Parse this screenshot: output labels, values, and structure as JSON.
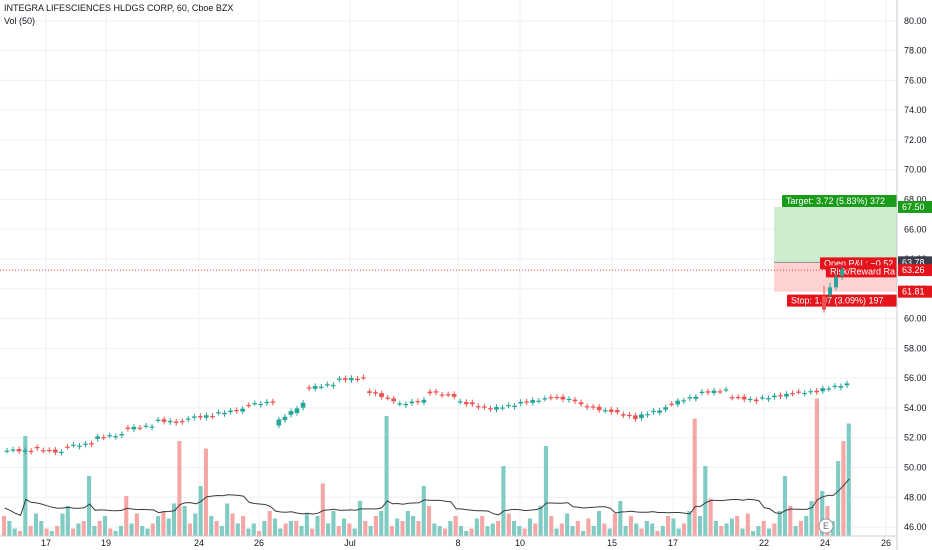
{
  "header": {
    "symbol_line": "INTEGRA LIFESCIENCES HLDGS CORP, 60, Cboe BZX",
    "volume_line": "Vol (50)"
  },
  "colors": {
    "up": "#26a69a",
    "down": "#ef5350",
    "vol_up": "#80cbc4",
    "vol_down": "#f4a7a5",
    "target_zone": "#cdeccd",
    "stop_zone": "#fdd2d1",
    "target_tag": "#1a9c1a",
    "stop_tag": "#e5141c",
    "price_line": "#e8413b",
    "ma_line": "#3c3c3c",
    "grid": "#eef0f3",
    "axis_tag_dark": "#3a3f4b"
  },
  "chart_data": {
    "type": "candlestick",
    "title": "INTEGRA LIFESCIENCES HLDGS CORP, 60, Cboe BZX",
    "ylim": [
      45.4,
      81.4
    ],
    "y_ticks": [
      46.0,
      48.0,
      50.0,
      52.0,
      54.0,
      56.0,
      58.0,
      60.0,
      62.0,
      64.0,
      66.0,
      68.0,
      70.0,
      72.0,
      74.0,
      76.0,
      78.0,
      80.0
    ],
    "x_ticks": [
      "17",
      "19",
      "24",
      "26",
      "Jul",
      "8",
      "10",
      "15",
      "17",
      "22",
      "24",
      "26"
    ],
    "grid": true,
    "trend_points": [
      [
        51.2,
        51.1
      ],
      [
        51.3,
        51.0
      ],
      [
        51.4,
        51.6
      ],
      [
        52.0,
        52.2
      ],
      [
        52.6,
        52.8
      ],
      [
        53.2,
        53.0
      ],
      [
        53.3,
        53.5
      ],
      [
        53.6,
        53.9
      ],
      [
        54.2,
        54.4
      ],
      [
        52.9,
        54.3
      ],
      [
        55.3,
        55.6
      ],
      [
        55.9,
        56.0
      ],
      [
        55.2,
        54.5
      ],
      [
        54.2,
        54.5
      ],
      [
        55.1,
        54.8
      ],
      [
        54.5,
        54.0
      ],
      [
        53.9,
        54.2
      ],
      [
        54.3,
        54.6
      ],
      [
        54.8,
        54.5
      ],
      [
        54.3,
        53.8
      ],
      [
        53.9,
        53.3
      ],
      [
        53.4,
        54.0
      ],
      [
        54.2,
        54.8
      ],
      [
        55.0,
        55.2
      ],
      [
        54.8,
        54.5
      ],
      [
        54.6,
        54.9
      ],
      [
        55.0,
        55.1
      ],
      [
        55.2,
        55.6
      ]
    ],
    "volume": {
      "label": "Vol (50)",
      "values": [
        8,
        6,
        3,
        2,
        40,
        4,
        9,
        6,
        3,
        2,
        4,
        9,
        12,
        3,
        5,
        6,
        24,
        4,
        6,
        8,
        3,
        2,
        4,
        16,
        5,
        9,
        4,
        3,
        5,
        8,
        10,
        7,
        13,
        38,
        12,
        5,
        9,
        20,
        35,
        8,
        6,
        4,
        13,
        9,
        5,
        8,
        3,
        5,
        2,
        6,
        10,
        7,
        3,
        5,
        6,
        6,
        4,
        9,
        3,
        8,
        21,
        5,
        10,
        4,
        7,
        5,
        3,
        14,
        6,
        4,
        8,
        10,
        48,
        4,
        7,
        6,
        10,
        8,
        6,
        20,
        12,
        5,
        4,
        3,
        6,
        8,
        4,
        2,
        3,
        7,
        8,
        4,
        5,
        6,
        28,
        9,
        6,
        4,
        3,
        7,
        5,
        12,
        36,
        8,
        3,
        5,
        9,
        4,
        6,
        2,
        7,
        4,
        10,
        5,
        3,
        9,
        14,
        4,
        8,
        5,
        3,
        6,
        5,
        2,
        4,
        8,
        7,
        3,
        5,
        10,
        47,
        8,
        28,
        15,
        6,
        4,
        5,
        7,
        8,
        3,
        9,
        2,
        4,
        6,
        3,
        5,
        10,
        24,
        12,
        4,
        6,
        8,
        14,
        55,
        18,
        12,
        6,
        30,
        38,
        45
      ]
    },
    "position": {
      "target_label": "Target: 3.72 (5.83%) 372",
      "stop_label": "Stop: 1.97 (3.09%) 197",
      "open_pnl_label": "Open P&L: −0.52",
      "risk_reward_label": "Risk/Reward Ra",
      "entry": 63.78,
      "target": 67.5,
      "stop": 61.81,
      "current": 63.26
    },
    "price_line_value": 63.26,
    "axis_tags": {
      "target": "67.50",
      "entry": "63.78",
      "current": "63.26",
      "stop": "61.81"
    },
    "earnings_marker": "E"
  }
}
